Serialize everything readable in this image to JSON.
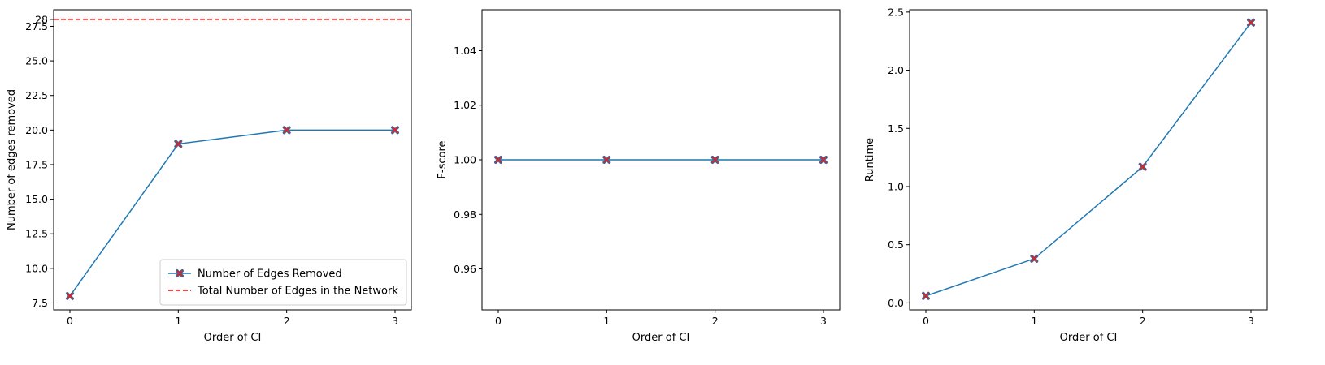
{
  "chart_data": [
    {
      "type": "line",
      "xlabel": "Order of CI",
      "ylabel": "Number of edges removed",
      "x": [
        0,
        1,
        2,
        3
      ],
      "xlim": [
        -0.15,
        3.15
      ],
      "ylim": [
        7.0,
        28.7
      ],
      "xticks": [
        0,
        1,
        2,
        3
      ],
      "yticks": [
        7.5,
        10.0,
        12.5,
        15.0,
        17.5,
        20.0,
        22.5,
        25.0,
        27.5,
        28
      ],
      "ytick_labels": [
        "7.5",
        "10.0",
        "12.5",
        "15.0",
        "17.5",
        "20.0",
        "22.5",
        "25.0",
        "27.5",
        "28"
      ],
      "series": [
        {
          "name": "Number of Edges Removed",
          "values": [
            8,
            19,
            20,
            20
          ],
          "color": "#1f77b4",
          "marker_color": "#d62728",
          "marker": "x",
          "style": "solid"
        }
      ],
      "hlines": [
        {
          "name": "Total Number of Edges in the Network",
          "value": 28,
          "color": "#ff0000",
          "style": "dashed"
        }
      ],
      "legend": "lower-right"
    },
    {
      "type": "line",
      "xlabel": "Order of CI",
      "ylabel": "F-score",
      "x": [
        0,
        1,
        2,
        3
      ],
      "xlim": [
        -0.15,
        3.15
      ],
      "ylim": [
        0.945,
        1.055
      ],
      "xticks": [
        0,
        1,
        2,
        3
      ],
      "yticks": [
        0.96,
        0.98,
        1.0,
        1.02,
        1.04
      ],
      "ytick_labels": [
        "0.96",
        "0.98",
        "1.00",
        "1.02",
        "1.04"
      ],
      "series": [
        {
          "values": [
            1.0,
            1.0,
            1.0,
            1.0
          ],
          "color": "#1f77b4",
          "marker_color": "#d62728",
          "marker": "x",
          "style": "solid"
        }
      ]
    },
    {
      "type": "line",
      "xlabel": "Order of CI",
      "ylabel": "Runtime",
      "x": [
        0,
        1,
        2,
        3
      ],
      "xlim": [
        -0.15,
        3.15
      ],
      "ylim": [
        -0.06,
        2.52
      ],
      "xticks": [
        0,
        1,
        2,
        3
      ],
      "yticks": [
        0.0,
        0.5,
        1.0,
        1.5,
        2.0,
        2.5
      ],
      "ytick_labels": [
        "0.0",
        "0.5",
        "1.0",
        "1.5",
        "2.0",
        "2.5"
      ],
      "series": [
        {
          "values": [
            0.06,
            0.38,
            1.17,
            2.41
          ],
          "color": "#1f77b4",
          "marker_color": "#d62728",
          "marker": "x",
          "style": "solid"
        }
      ]
    }
  ]
}
